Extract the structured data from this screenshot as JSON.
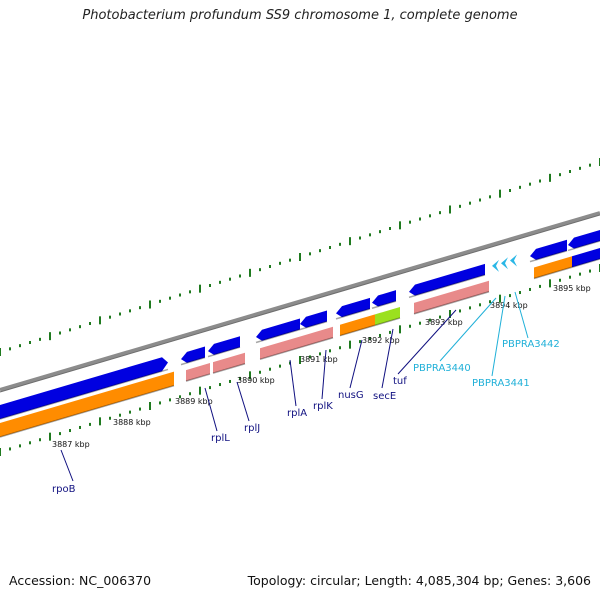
{
  "title": "Photobacterium profundum SS9 chromosome 1, complete genome",
  "footer": {
    "accession": "Accession: NC_006370",
    "summary": "Topology: circular; Length: 4,085,304 bp; Genes: 3,606"
  },
  "colors": {
    "backbone": "#8c8c8c",
    "tick": "#1f7a1f",
    "gene_blue": "#0000e0",
    "gene_orange": "#ff8c00",
    "gene_pink": "#e88a8a",
    "gene_green": "#9be01e",
    "trna_cyan": "#2ab7e6",
    "label_navy": "#101080",
    "label_cyan": "#20b0d8"
  },
  "kbp_labels": [
    "3887 kbp",
    "3888 kbp",
    "3889 kbp",
    "3890 kbp",
    "3891 kbp",
    "3892 kbp",
    "3893 kbp",
    "3894 kbp",
    "3895 kbp"
  ],
  "gene_labels": [
    {
      "name": "rpoB",
      "color": "navy"
    },
    {
      "name": "rplL",
      "color": "navy"
    },
    {
      "name": "rplJ",
      "color": "navy"
    },
    {
      "name": "rplA",
      "color": "navy"
    },
    {
      "name": "rplK",
      "color": "navy"
    },
    {
      "name": "nusG",
      "color": "navy"
    },
    {
      "name": "secE",
      "color": "navy"
    },
    {
      "name": "tuf",
      "color": "navy"
    },
    {
      "name": "PBPRA3440",
      "color": "cyan"
    },
    {
      "name": "PBPRA3441",
      "color": "cyan"
    },
    {
      "name": "PBPRA3442",
      "color": "cyan"
    }
  ]
}
